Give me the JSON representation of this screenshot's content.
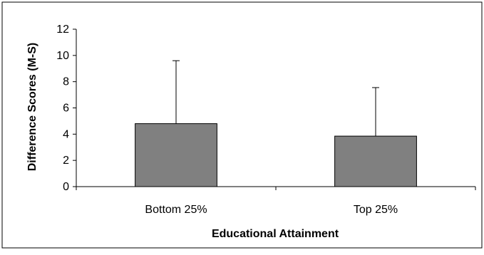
{
  "chart_data": {
    "type": "bar",
    "title": "",
    "xlabel": "Educational Attainment",
    "ylabel": "Difference Scores (M-S)",
    "categories": [
      "Bottom 25%",
      "Top 25%"
    ],
    "values": [
      4.8,
      3.85
    ],
    "error_upper": [
      9.6,
      7.55
    ],
    "ylim": [
      0,
      12
    ],
    "yticks": [
      "0",
      "2",
      "4",
      "6",
      "8",
      "10",
      "12"
    ],
    "grid": false,
    "legend": "none",
    "bar_color": "#808080",
    "bar_edge_color": "#000000"
  }
}
